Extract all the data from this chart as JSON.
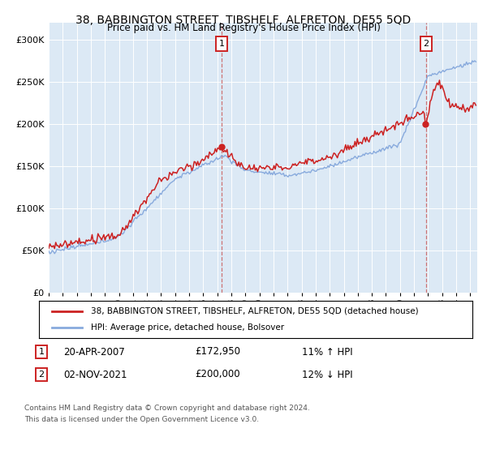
{
  "title": "38, BABBINGTON STREET, TIBSHELF, ALFRETON, DE55 5QD",
  "subtitle": "Price paid vs. HM Land Registry's House Price Index (HPI)",
  "legend_line1": "38, BABBINGTON STREET, TIBSHELF, ALFRETON, DE55 5QD (detached house)",
  "legend_line2": "HPI: Average price, detached house, Bolsover",
  "annotation1_date": "20-APR-2007",
  "annotation1_price": "£172,950",
  "annotation1_hpi": "11% ↑ HPI",
  "annotation1_year": 2007.3,
  "annotation1_value": 172950,
  "annotation2_date": "02-NOV-2021",
  "annotation2_price": "£200,000",
  "annotation2_hpi": "12% ↓ HPI",
  "annotation2_year": 2021.84,
  "annotation2_value": 200000,
  "footer1": "Contains HM Land Registry data © Crown copyright and database right 2024.",
  "footer2": "This data is licensed under the Open Government Licence v3.0.",
  "plot_bg_color": "#dce9f5",
  "fig_bg_color": "#ffffff",
  "red_line_color": "#cc2222",
  "blue_line_color": "#88aadd",
  "grid_color": "#ffffff",
  "dashed_line_color": "#cc6666",
  "ylim_max": 320000,
  "xlim_start": 1995.0,
  "xlim_end": 2025.5
}
